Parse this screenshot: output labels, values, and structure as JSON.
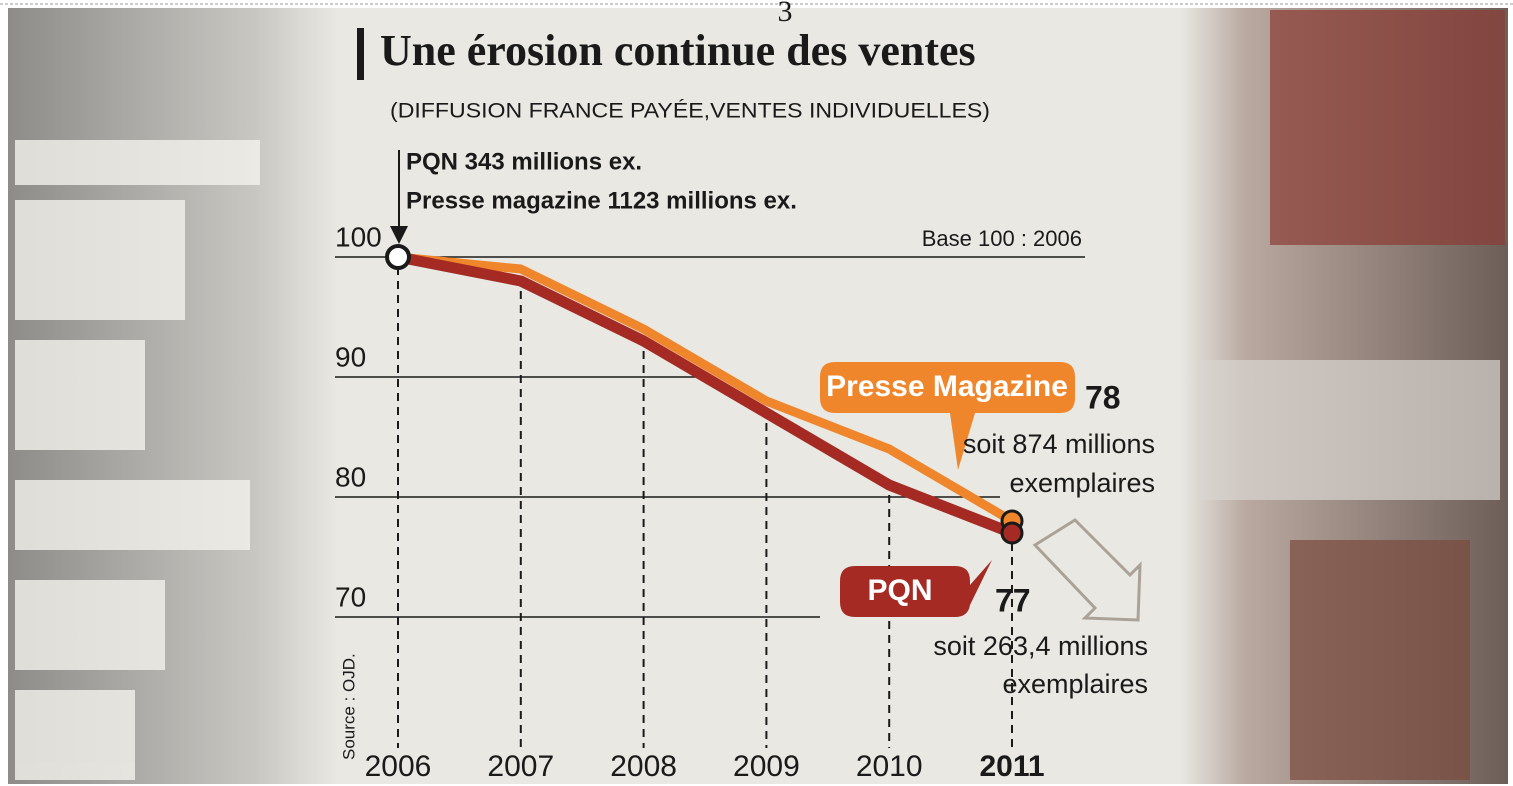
{
  "page_number": "3",
  "chart_data": {
    "type": "line",
    "title": "Une érosion continue des ventes",
    "subtitle": "(DIFFUSION FRANCE PAYÉE,VENTES INDIVIDUELLES)",
    "base_annotation": [
      "PQN 343 millions ex.",
      "Presse magazine 1123 millions ex."
    ],
    "base_note": "Base 100 : 2006",
    "source": "Source : OJD.",
    "x": [
      2006,
      2007,
      2008,
      2009,
      2010,
      2011
    ],
    "ylim": [
      65,
      101
    ],
    "yticks": [
      70,
      80,
      90,
      100
    ],
    "series": [
      {
        "name": "Presse Magazine",
        "color": "#f0862c",
        "values": [
          100,
          99,
          94,
          88,
          84,
          78
        ],
        "note": [
          "soit 874 millions",
          "exemplaires"
        ]
      },
      {
        "name": "PQN",
        "color": "#a52a24",
        "values": [
          100,
          98,
          93,
          87,
          81,
          77
        ],
        "note": [
          "soit 263,4 millions",
          "exemplaires"
        ]
      }
    ]
  }
}
